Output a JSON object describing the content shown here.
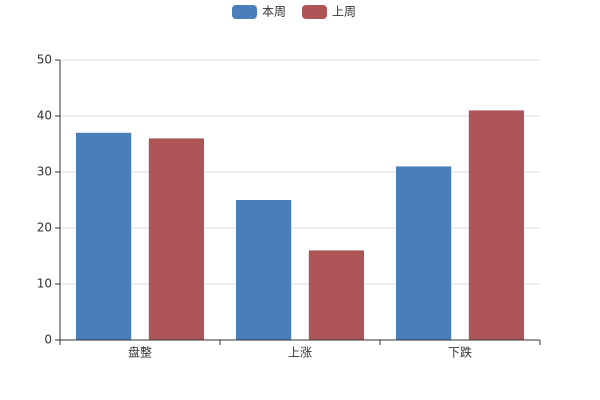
{
  "chart_data": {
    "type": "bar",
    "categories": [
      "盘整",
      "上涨",
      "下跌"
    ],
    "series": [
      {
        "name": "本周",
        "color": "#4a7ebb",
        "values": [
          37,
          25,
          31
        ]
      },
      {
        "name": "上周",
        "color": "#ad5457",
        "values": [
          36,
          16,
          41
        ]
      }
    ],
    "ylim": [
      0,
      50
    ],
    "yticks": [
      0,
      10,
      20,
      30,
      40,
      50
    ],
    "grid": true,
    "legend": "top"
  }
}
